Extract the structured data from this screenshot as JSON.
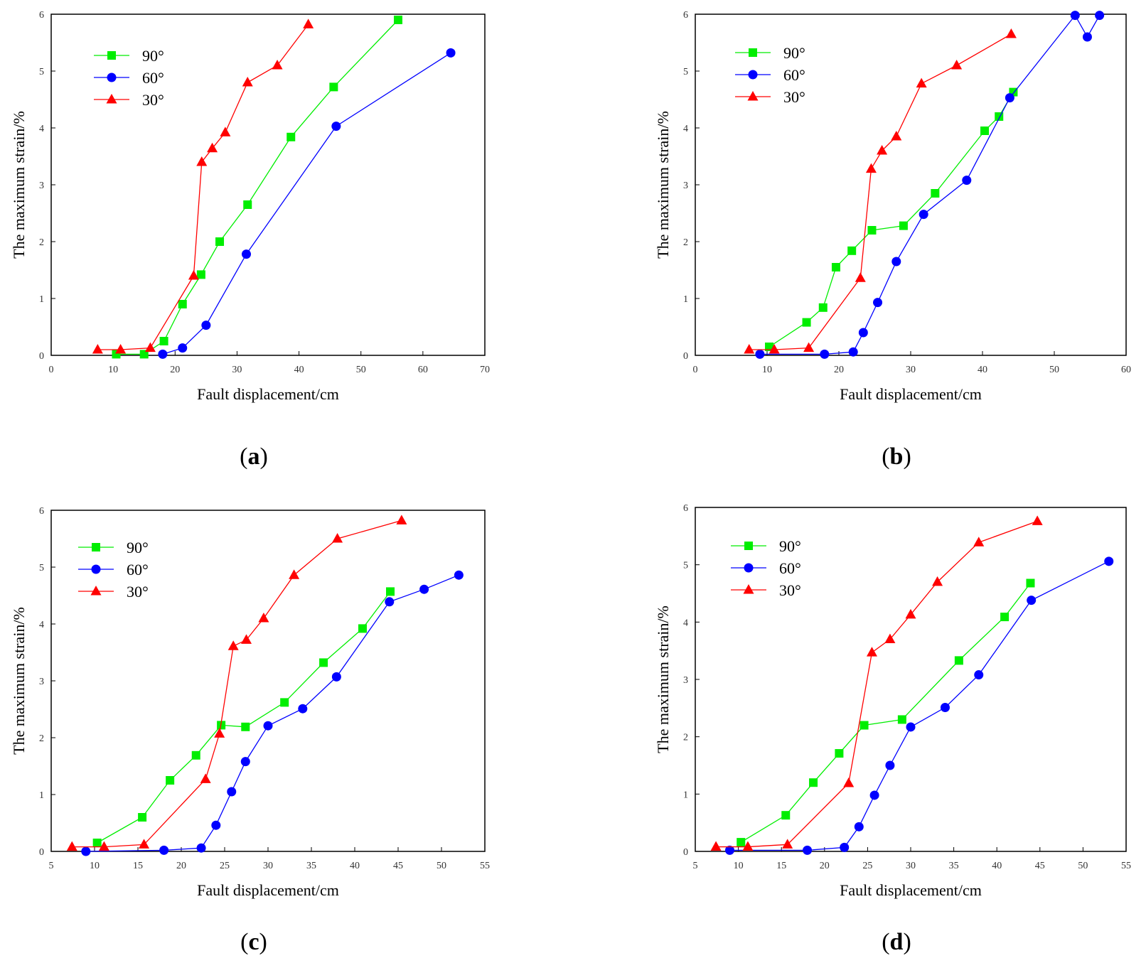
{
  "figure": {
    "panel_labels": [
      "a",
      "b",
      "c",
      "d"
    ]
  },
  "chart_data": [
    {
      "panel": "a",
      "type": "line",
      "xlabel": "Fault displacement/cm",
      "ylabel": "The maximum strain/%",
      "xlim": [
        0,
        70
      ],
      "ylim": [
        0,
        6
      ],
      "xticks": [
        0,
        10,
        20,
        30,
        40,
        50,
        60,
        70
      ],
      "yticks": [
        0,
        1,
        2,
        3,
        4,
        5,
        6
      ],
      "legend_position": "top-left",
      "series": [
        {
          "name": "90°",
          "color": "#00ee00",
          "marker": "square",
          "x": [
            10.5,
            15,
            18.2,
            21.2,
            24.2,
            27.2,
            31.7,
            38.7,
            45.6,
            56
          ],
          "y": [
            0.02,
            0.02,
            0.25,
            0.9,
            1.42,
            2.0,
            2.65,
            3.84,
            4.72,
            5.9
          ]
        },
        {
          "name": "60°",
          "color": "#0000ff",
          "marker": "circle",
          "x": [
            18,
            21.2,
            25,
            31.5,
            46,
            64.5
          ],
          "y": [
            0.02,
            0.13,
            0.53,
            1.78,
            4.03,
            5.32
          ]
        },
        {
          "name": "30°",
          "color": "#ff0000",
          "marker": "triangle",
          "x": [
            7.5,
            11.2,
            16,
            23,
            24.3,
            26,
            28.1,
            31.7,
            36.5,
            41.5
          ],
          "y": [
            0.1,
            0.1,
            0.13,
            1.4,
            3.4,
            3.64,
            3.92,
            4.8,
            5.1,
            5.82
          ]
        }
      ]
    },
    {
      "panel": "b",
      "type": "line",
      "xlabel": "Fault displacement/cm",
      "ylabel": "The maximum strain/%",
      "xlim": [
        0,
        60
      ],
      "ylim": [
        0,
        6
      ],
      "xticks": [
        0,
        10,
        20,
        30,
        40,
        50,
        60
      ],
      "yticks": [
        0,
        1,
        2,
        3,
        4,
        5,
        6
      ],
      "legend_position": "top-left",
      "series": [
        {
          "name": "90°",
          "color": "#00ee00",
          "marker": "square",
          "x": [
            10.3,
            15.5,
            17.8,
            19.6,
            21.8,
            24.6,
            29,
            33.4,
            40.3,
            42.3,
            44.3
          ],
          "y": [
            0.15,
            0.58,
            0.84,
            1.55,
            1.84,
            2.2,
            2.28,
            2.85,
            3.95,
            4.2,
            4.63
          ]
        },
        {
          "name": "60°",
          "color": "#0000ff",
          "marker": "circle",
          "x": [
            9,
            18,
            22,
            23.4,
            25.4,
            28,
            31.8,
            37.8,
            43.8,
            52.9,
            54.6,
            56.3
          ],
          "y": [
            0.02,
            0.02,
            0.06,
            0.4,
            0.93,
            1.65,
            2.48,
            3.08,
            4.53,
            5.98,
            5.6,
            5.98
          ]
        },
        {
          "name": "30°",
          "color": "#ff0000",
          "marker": "triangle",
          "x": [
            7.5,
            11,
            15.8,
            23,
            24.5,
            26,
            28,
            31.5,
            36.4,
            44
          ],
          "y": [
            0.1,
            0.1,
            0.13,
            1.36,
            3.28,
            3.6,
            3.85,
            4.78,
            5.1,
            5.65
          ]
        }
      ]
    },
    {
      "panel": "c",
      "type": "line",
      "xlabel": "Fault displacement/cm",
      "ylabel": "The maximum strain/%",
      "xlim": [
        5,
        55
      ],
      "ylim": [
        0,
        6
      ],
      "xticks": [
        5,
        10,
        15,
        20,
        25,
        30,
        35,
        40,
        45,
        50,
        55
      ],
      "yticks": [
        0,
        1,
        2,
        3,
        4,
        5,
        6
      ],
      "legend_position": "top-left",
      "series": [
        {
          "name": "90°",
          "color": "#00ee00",
          "marker": "square",
          "x": [
            10.3,
            15.5,
            18.7,
            21.7,
            24.6,
            27.4,
            31.9,
            36.4,
            40.9,
            44.1
          ],
          "y": [
            0.15,
            0.6,
            1.25,
            1.69,
            2.22,
            2.19,
            2.62,
            3.32,
            3.92,
            4.57
          ]
        },
        {
          "name": "60°",
          "color": "#0000ff",
          "marker": "circle",
          "x": [
            9,
            18,
            22.3,
            24,
            25.8,
            27.4,
            30,
            34,
            37.9,
            44,
            48,
            52
          ],
          "y": [
            0.0,
            0.02,
            0.06,
            0.46,
            1.05,
            1.58,
            2.21,
            2.51,
            3.07,
            4.39,
            4.61,
            4.86
          ]
        },
        {
          "name": "30°",
          "color": "#ff0000",
          "marker": "triangle",
          "x": [
            7.4,
            11.1,
            15.7,
            22.8,
            24.4,
            26,
            27.5,
            29.5,
            33,
            38,
            45.4
          ],
          "y": [
            0.08,
            0.08,
            0.12,
            1.27,
            2.07,
            3.61,
            3.72,
            4.1,
            4.86,
            5.5,
            5.82
          ]
        }
      ]
    },
    {
      "panel": "d",
      "type": "line",
      "xlabel": "Fault displacement/cm",
      "ylabel": "The maximum strain/%",
      "xlim": [
        5,
        55
      ],
      "ylim": [
        0,
        6
      ],
      "xticks": [
        5,
        10,
        15,
        20,
        25,
        30,
        35,
        40,
        45,
        50,
        55
      ],
      "yticks": [
        0,
        1,
        2,
        3,
        4,
        5,
        6
      ],
      "legend_position": "top-left",
      "series": [
        {
          "name": "90°",
          "color": "#00ee00",
          "marker": "square",
          "x": [
            10.3,
            15.5,
            18.7,
            21.7,
            24.6,
            29,
            35.6,
            40.9,
            43.9
          ],
          "y": [
            0.16,
            0.63,
            1.2,
            1.71,
            2.2,
            2.3,
            3.33,
            4.09,
            4.68
          ]
        },
        {
          "name": "60°",
          "color": "#0000ff",
          "marker": "circle",
          "x": [
            9,
            18,
            22.3,
            24,
            25.8,
            27.6,
            30,
            34,
            37.9,
            44,
            53
          ],
          "y": [
            0.02,
            0.02,
            0.07,
            0.43,
            0.98,
            1.5,
            2.17,
            2.51,
            3.08,
            4.38,
            5.06
          ]
        },
        {
          "name": "30°",
          "color": "#ff0000",
          "marker": "triangle",
          "x": [
            7.4,
            11.1,
            15.7,
            22.8,
            25.5,
            27.6,
            30,
            33.1,
            37.9,
            44.7
          ],
          "y": [
            0.08,
            0.08,
            0.12,
            1.19,
            3.47,
            3.7,
            4.13,
            4.7,
            5.39,
            5.76
          ]
        }
      ]
    }
  ]
}
